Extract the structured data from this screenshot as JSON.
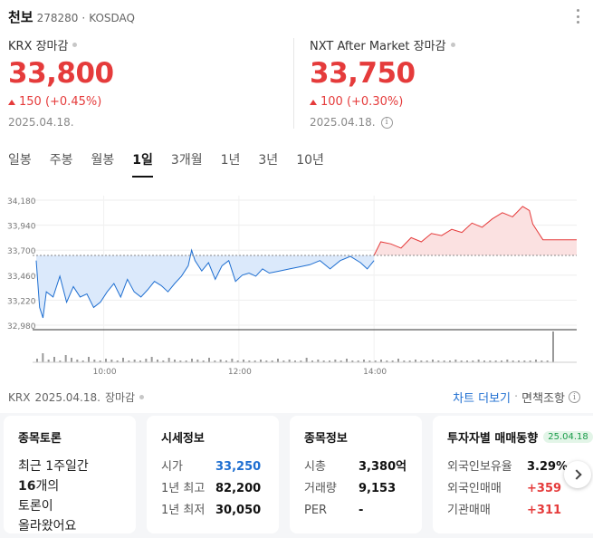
{
  "header": {
    "name": "천보",
    "code": "278280",
    "separator": "·",
    "market": "KOSDAQ"
  },
  "krx": {
    "label": "KRX 장마감",
    "price": "33,800",
    "change": "150 (+0.45%)",
    "date": "2025.04.18."
  },
  "nxt": {
    "label": "NXT After Market 장마감",
    "price": "33,750",
    "change": "100 (+0.30%)",
    "date": "2025.04.18.",
    "info_icon": "info-icon"
  },
  "tabs": [
    "일봉",
    "주봉",
    "월봉",
    "1일",
    "3개월",
    "1년",
    "3년",
    "10년"
  ],
  "active_tab": "1일",
  "colors": {
    "up": "#e53b3b",
    "down": "#1f6fd1",
    "accent": "#111111"
  },
  "chart_data": {
    "type": "area",
    "y_ticks": [
      "34,180",
      "33,940",
      "33,700",
      "33,460",
      "33,220",
      "32,980"
    ],
    "x_ticks": [
      "10:00",
      "12:00",
      "14:00"
    ],
    "ylim": [
      32980,
      34180
    ],
    "previous_close": 33650,
    "regular_session": [
      [
        9.0,
        33600
      ],
      [
        9.05,
        33150
      ],
      [
        9.1,
        33050
      ],
      [
        9.15,
        33300
      ],
      [
        9.25,
        33250
      ],
      [
        9.35,
        33450
      ],
      [
        9.45,
        33200
      ],
      [
        9.55,
        33350
      ],
      [
        9.65,
        33250
      ],
      [
        9.75,
        33280
      ],
      [
        9.85,
        33150
      ],
      [
        9.95,
        33200
      ],
      [
        10.05,
        33300
      ],
      [
        10.15,
        33380
      ],
      [
        10.25,
        33250
      ],
      [
        10.35,
        33420
      ],
      [
        10.45,
        33300
      ],
      [
        10.55,
        33250
      ],
      [
        10.65,
        33320
      ],
      [
        10.75,
        33400
      ],
      [
        10.85,
        33360
      ],
      [
        10.95,
        33300
      ],
      [
        11.05,
        33380
      ],
      [
        11.15,
        33450
      ],
      [
        11.25,
        33550
      ],
      [
        11.3,
        33700
      ],
      [
        11.35,
        33600
      ],
      [
        11.45,
        33500
      ],
      [
        11.55,
        33580
      ],
      [
        11.65,
        33420
      ],
      [
        11.75,
        33550
      ],
      [
        11.85,
        33600
      ],
      [
        11.95,
        33400
      ],
      [
        12.05,
        33460
      ],
      [
        12.15,
        33480
      ],
      [
        12.25,
        33450
      ],
      [
        12.35,
        33520
      ],
      [
        12.45,
        33480
      ],
      [
        12.6,
        33500
      ],
      [
        12.75,
        33520
      ],
      [
        12.9,
        33540
      ],
      [
        13.05,
        33560
      ],
      [
        13.2,
        33600
      ],
      [
        13.35,
        33520
      ],
      [
        13.5,
        33600
      ],
      [
        13.65,
        33640
      ],
      [
        13.8,
        33580
      ],
      [
        13.9,
        33520
      ],
      [
        14.0,
        33600
      ]
    ],
    "after_market": [
      [
        14.0,
        33650
      ],
      [
        14.1,
        33780
      ],
      [
        14.25,
        33760
      ],
      [
        14.4,
        33720
      ],
      [
        14.55,
        33820
      ],
      [
        14.7,
        33780
      ],
      [
        14.85,
        33860
      ],
      [
        15.0,
        33840
      ],
      [
        15.15,
        33900
      ],
      [
        15.3,
        33870
      ],
      [
        15.45,
        33960
      ],
      [
        15.6,
        33920
      ],
      [
        15.75,
        34000
      ],
      [
        15.9,
        34060
      ],
      [
        16.05,
        34020
      ],
      [
        16.2,
        34120
      ],
      [
        16.3,
        34080
      ],
      [
        16.35,
        33950
      ],
      [
        16.5,
        33800
      ],
      [
        16.8,
        33800
      ],
      [
        17.0,
        33800
      ]
    ]
  },
  "source_line": {
    "market": "KRX",
    "date": "2025.04.18.",
    "status": "장마감"
  },
  "chart_links": {
    "more": "차트 더보기",
    "separator": "·",
    "compare": "면책조항",
    "info_icon": "info-icon"
  },
  "cards": {
    "discussion": {
      "title": "종목토론",
      "line1": "최근 1주일간",
      "line2_count": "16",
      "line2_suffix": "개의",
      "line3": "토론이",
      "line4": "올라왔어요"
    },
    "quote": {
      "title": "시세정보",
      "rows": [
        {
          "k": "시가",
          "v": "33,250"
        },
        {
          "k": "1년 최고",
          "v": "82,200"
        },
        {
          "k": "1년 최저",
          "v": "30,050"
        }
      ]
    },
    "stock_info": {
      "title": "종목정보",
      "rows": [
        {
          "k": "시총",
          "v": "3,380억"
        },
        {
          "k": "거래량",
          "v": "9,153"
        },
        {
          "k": "PER",
          "v": "-"
        }
      ]
    },
    "investor": {
      "title": "투자자별 매매동향",
      "badge": "25.04.18",
      "rows": [
        {
          "k": "외국인보유율",
          "v": "3.29%"
        },
        {
          "k": "외국인매매",
          "v": "+359"
        },
        {
          "k": "기관매매",
          "v": "+311"
        }
      ]
    }
  }
}
